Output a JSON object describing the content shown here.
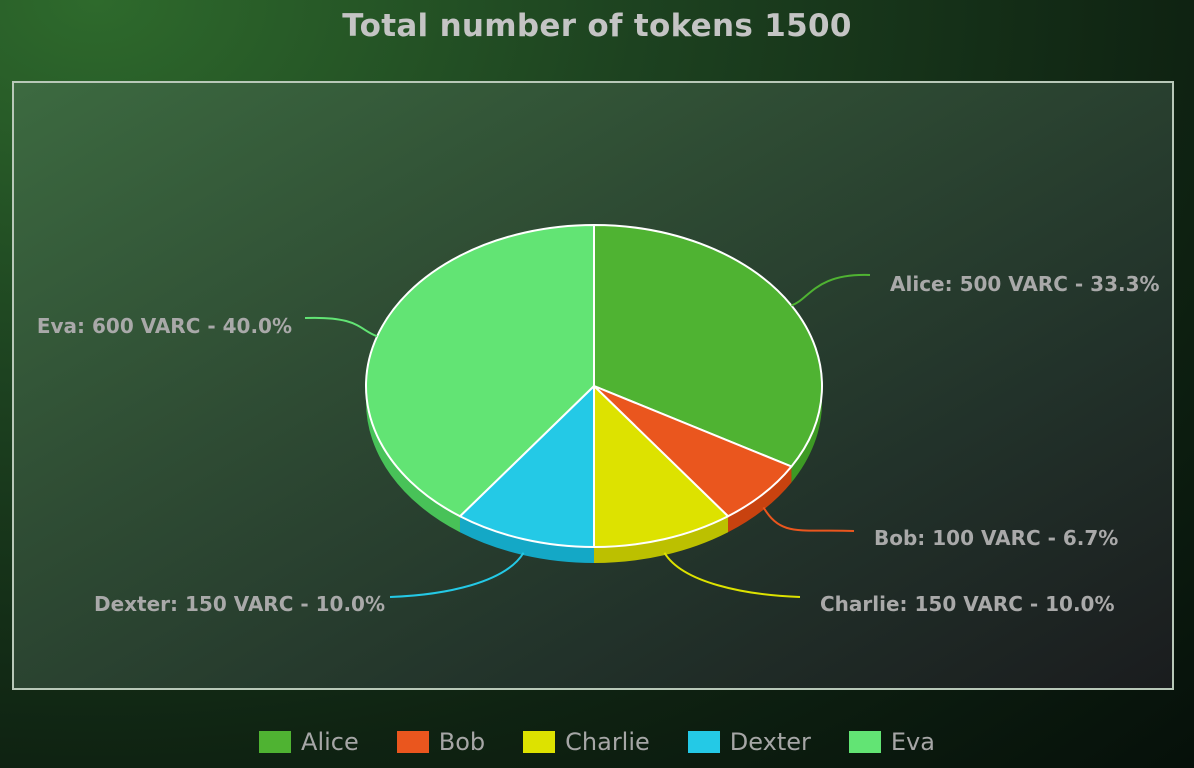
{
  "chart_data": {
    "type": "pie",
    "title": "Total number of tokens 1500",
    "unit": "VARC",
    "legend_position": "bottom",
    "slices": [
      {
        "name": "Alice",
        "value": 500,
        "percent": "33.3%",
        "color": "#4fb332",
        "side_color": "#3d9a24",
        "label": "Alice: 500 VARC - 33.3%"
      },
      {
        "name": "Bob",
        "value": 100,
        "percent": "6.7%",
        "color": "#ea561e",
        "side_color": "#c8420f",
        "label": "Bob: 100 VARC - 6.7%"
      },
      {
        "name": "Charlie",
        "value": 150,
        "percent": "10.0%",
        "color": "#dde200",
        "side_color": "#bcc000",
        "label": "Charlie: 150 VARC - 10.0%"
      },
      {
        "name": "Dexter",
        "value": 150,
        "percent": "10.0%",
        "color": "#24c9e6",
        "side_color": "#14a8c6",
        "label": "Dexter: 150 VARC - 10.0%"
      },
      {
        "name": "Eva",
        "value": 600,
        "percent": "40.0%",
        "color": "#62e474",
        "side_color": "#48c258",
        "label": "Eva: 600 VARC - 40.0%"
      }
    ]
  }
}
